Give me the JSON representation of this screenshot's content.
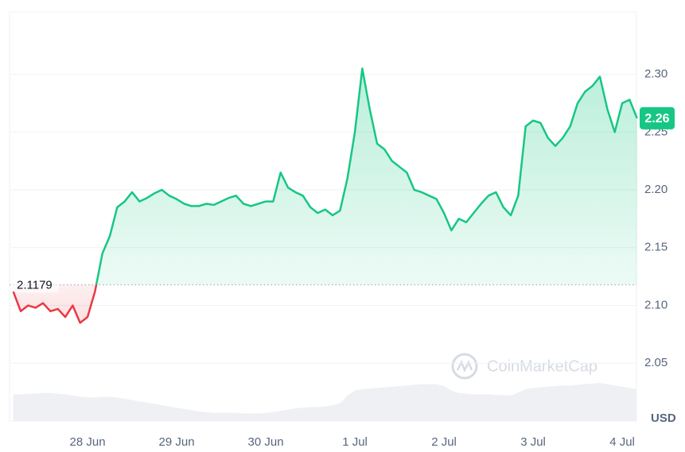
{
  "chart_data": {
    "type": "line",
    "y_unit": "USD",
    "watermark": "CoinMarketCap",
    "baseline": 2.1179,
    "current_price_label": "2.26",
    "up_color": "#16c784",
    "down_color": "#ea3943",
    "grid": true,
    "ylim": [
      2.0,
      2.354
    ],
    "yticks": [
      2.05,
      {
        "value": 2.1,
        "label": "2.10"
      },
      2.15,
      {
        "value": 2.2,
        "label": "2.20"
      },
      2.25,
      {
        "value": 2.3,
        "label": "2.30"
      }
    ],
    "categories": [
      null,
      null,
      null,
      null,
      null,
      null,
      null,
      null,
      null,
      null,
      "28 Jun",
      null,
      null,
      null,
      null,
      null,
      null,
      null,
      null,
      null,
      null,
      null,
      "29 Jun",
      null,
      null,
      null,
      null,
      null,
      null,
      null,
      null,
      null,
      null,
      null,
      "30 Jun",
      null,
      null,
      null,
      null,
      null,
      null,
      null,
      null,
      null,
      null,
      null,
      "1 Jul",
      null,
      null,
      null,
      null,
      null,
      null,
      null,
      null,
      null,
      null,
      null,
      "2 Jul",
      null,
      null,
      null,
      null,
      null,
      null,
      null,
      null,
      null,
      null,
      null,
      "3 Jul",
      null,
      null,
      null,
      null,
      null,
      null,
      null,
      null,
      null,
      null,
      null,
      "4 Jul",
      null,
      null
    ],
    "values": [
      2.112,
      2.095,
      2.1,
      2.098,
      2.102,
      2.095,
      2.097,
      2.09,
      2.1,
      2.085,
      2.09,
      2.112,
      2.145,
      2.16,
      2.185,
      2.19,
      2.198,
      2.19,
      2.193,
      2.197,
      2.2,
      2.195,
      2.192,
      2.188,
      2.186,
      2.186,
      2.188,
      2.187,
      2.19,
      2.193,
      2.195,
      2.188,
      2.186,
      2.188,
      2.19,
      2.19,
      2.215,
      2.202,
      2.198,
      2.195,
      2.185,
      2.18,
      2.183,
      2.178,
      2.182,
      2.21,
      2.25,
      2.305,
      2.27,
      2.24,
      2.235,
      2.225,
      2.22,
      2.215,
      2.2,
      2.198,
      2.195,
      2.192,
      2.18,
      2.165,
      2.175,
      2.172,
      2.18,
      2.188,
      2.195,
      2.198,
      2.185,
      2.178,
      2.195,
      2.255,
      2.26,
      2.258,
      2.245,
      2.238,
      2.245,
      2.255,
      2.275,
      2.285,
      2.29,
      2.298,
      2.27,
      2.25,
      2.275,
      2.278,
      2.262
    ],
    "volume": [
      42,
      42,
      43,
      43,
      44,
      44,
      43,
      42,
      40,
      38,
      37,
      37,
      38,
      38,
      37,
      35,
      33,
      31,
      29,
      27,
      25,
      23,
      21,
      19,
      17,
      15,
      14,
      13,
      13,
      13,
      13,
      12,
      12,
      12,
      13,
      14,
      16,
      18,
      20,
      21,
      22,
      22,
      23,
      25,
      28,
      40,
      48,
      50,
      51,
      52,
      53,
      54,
      55,
      56,
      57,
      58,
      58,
      58,
      55,
      48,
      44,
      43,
      42,
      42,
      42,
      41,
      41,
      40,
      45,
      50,
      52,
      53,
      54,
      55,
      56,
      56,
      57,
      58,
      59,
      60,
      58,
      56,
      54,
      52,
      50
    ]
  }
}
